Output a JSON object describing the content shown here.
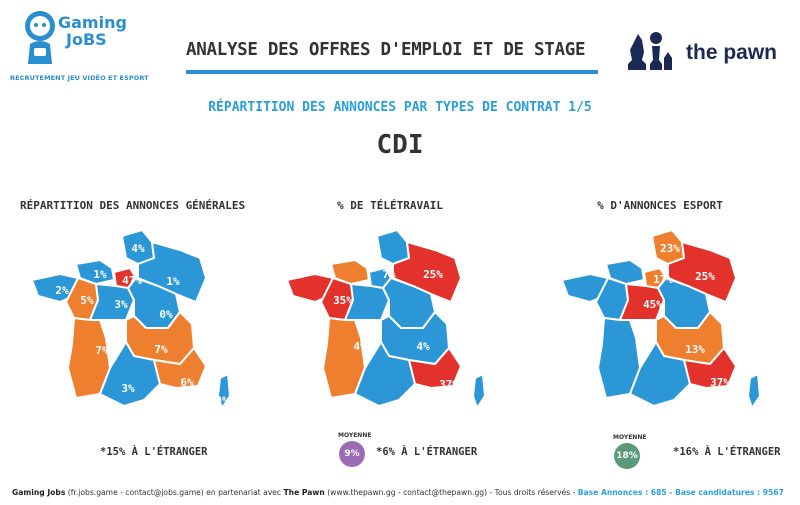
{
  "brand_left": {
    "name_line1": "Gaming",
    "name_line2": "JoBS",
    "tagline": "RECRUTEMENT JEU VIDÉO ET ESPORT"
  },
  "brand_right": {
    "name": "the pawn"
  },
  "header": {
    "title": "ANALYSE DES OFFRES D'EMPLOI ET DE STAGE",
    "subtitle": "RÉPARTITION DES ANNONCES PAR TYPES DE CONTRAT 1/5",
    "contract": "CDI"
  },
  "colors": {
    "blue": "#2b97d6",
    "orange": "#ee7f2e",
    "red": "#e3312c",
    "title_blue": "#2a9fd8",
    "purple": "#9b6bb3",
    "green": "#5a9a7a"
  },
  "chart_data": [
    {
      "type": "map",
      "title": "RÉPARTITION DES ANNONCES GÉNÉRALES",
      "regions": [
        {
          "label": "4%",
          "value": 4,
          "color": "blue"
        },
        {
          "label": "1%",
          "value": 1,
          "color": "blue"
        },
        {
          "label": "47%",
          "value": 47,
          "color": "red"
        },
        {
          "label": "1%",
          "value": 1,
          "color": "blue"
        },
        {
          "label": "2%",
          "value": 2,
          "color": "blue"
        },
        {
          "label": "5%",
          "value": 5,
          "color": "orange"
        },
        {
          "label": "3%",
          "value": 3,
          "color": "blue"
        },
        {
          "label": "0%",
          "value": 0,
          "color": "blue"
        },
        {
          "label": "7%",
          "value": 7,
          "color": "orange"
        },
        {
          "label": "7%",
          "value": 7,
          "color": "orange"
        },
        {
          "label": "3%",
          "value": 3,
          "color": "blue"
        },
        {
          "label": "6%",
          "value": 6,
          "color": "orange"
        },
        {
          "label": "0%",
          "value": 0,
          "color": "blue"
        }
      ],
      "footnote": "*15% À L'ÉTRANGER"
    },
    {
      "type": "map",
      "title": "% DE TÉLÉTRAVAIL",
      "regions": [
        {
          "label": "7%",
          "value": 7,
          "color": "orange"
        },
        {
          "label": "25%",
          "value": 25,
          "color": "red"
        },
        {
          "label": "35%",
          "value": 35,
          "color": "red"
        },
        {
          "label": "4%",
          "value": 4,
          "color": "orange"
        },
        {
          "label": "4%",
          "value": 4,
          "color": "blue"
        },
        {
          "label": "37%",
          "value": 37,
          "color": "red"
        }
      ],
      "average_label": "MOYENNE",
      "average": "9%",
      "average_color": "purple",
      "footnote": "*6% À L'ÉTRANGER"
    },
    {
      "type": "map",
      "title": "% D'ANNONCES ESPORT",
      "regions": [
        {
          "label": "23%",
          "value": 23,
          "color": "orange"
        },
        {
          "label": "17%",
          "value": 17,
          "color": "orange"
        },
        {
          "label": "25%",
          "value": 25,
          "color": "red"
        },
        {
          "label": "45%",
          "value": 45,
          "color": "red"
        },
        {
          "label": "13%",
          "value": 13,
          "color": "orange"
        },
        {
          "label": "37%",
          "value": 37,
          "color": "red"
        }
      ],
      "average_label": "MOYENNE",
      "average": "18%",
      "average_color": "green",
      "footnote": "*16% À L'ÉTRANGER"
    }
  ],
  "footer": {
    "brand1": "Gaming Jobs",
    "text1": " (fr.jobs.game - contact@jobs.game) en partenariat avec ",
    "brand2": "The Pawn",
    "text2": " (www.thepawn.gg - contact@thepawn.gg) - Tous droits réservés - ",
    "stat": "Base Annonces : 685 - Base candidatures : 9567"
  }
}
